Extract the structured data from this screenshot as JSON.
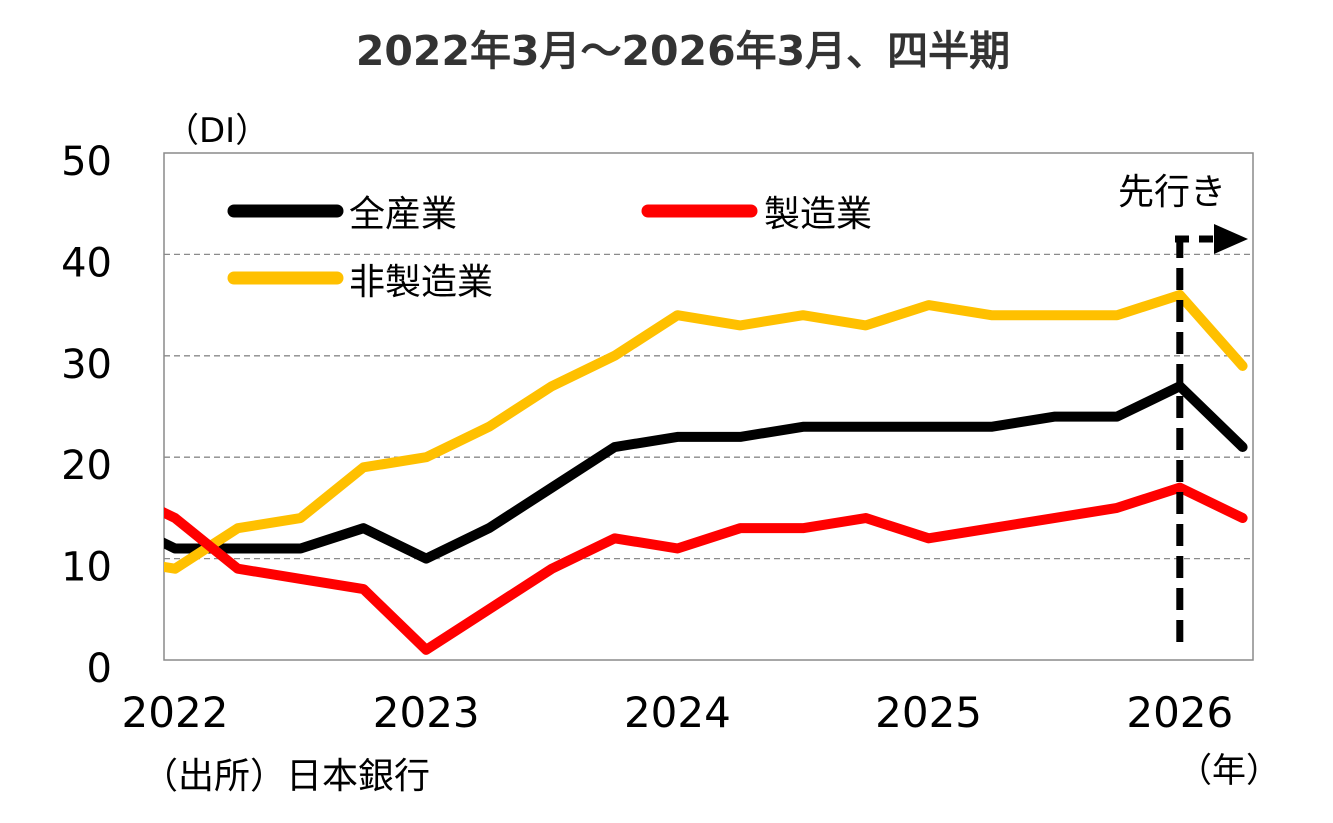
{
  "chart_data": {
    "type": "line",
    "title": "2022年3月～2026年3月、四半期",
    "ylabel": "（DI）",
    "xlabel": "（年）",
    "source": "（出所）日本銀行",
    "ylim": [
      0,
      50
    ],
    "yticks": [
      0,
      10,
      20,
      30,
      40,
      50
    ],
    "gridlines": [
      10,
      20,
      30,
      40
    ],
    "grid": true,
    "legend_position": "top-left",
    "x": [
      "2022/03",
      "2022/06",
      "2022/09",
      "2022/12",
      "2023/03",
      "2023/06",
      "2023/09",
      "2023/12",
      "2024/03",
      "2024/06",
      "2024/09",
      "2024/12",
      "2025/03",
      "2025/06",
      "2025/09",
      "2025/12",
      "2026/03",
      "2026/06"
    ],
    "xticks": [
      {
        "label": "2022",
        "index": 0
      },
      {
        "label": "2023",
        "index": 4
      },
      {
        "label": "2024",
        "index": 8
      },
      {
        "label": "2025",
        "index": 12
      },
      {
        "label": "2026",
        "index": 16
      }
    ],
    "leading_value_note": "line enters from left edge (2021/12 value, clipped)",
    "series": [
      {
        "name": "全産業",
        "color": "#000000",
        "prior": 14,
        "values": [
          11,
          11,
          11,
          13,
          10,
          13,
          17,
          21,
          22,
          22,
          23,
          23,
          23,
          23,
          24,
          24,
          27,
          21
        ]
      },
      {
        "name": "製造業",
        "color": "#ff0000",
        "prior": 17,
        "values": [
          14,
          9,
          8,
          7,
          1,
          5,
          9,
          12,
          11,
          13,
          13,
          14,
          12,
          13,
          14,
          15,
          17,
          14
        ]
      },
      {
        "name": "非製造業",
        "color": "#ffc000",
        "prior": 10,
        "values": [
          9,
          13,
          14,
          19,
          20,
          23,
          27,
          30,
          34,
          33,
          34,
          33,
          35,
          34,
          34,
          34,
          36,
          29
        ]
      }
    ],
    "annotations": [
      {
        "text": "先行き",
        "type": "forecast-marker",
        "start_index": 16
      }
    ]
  }
}
